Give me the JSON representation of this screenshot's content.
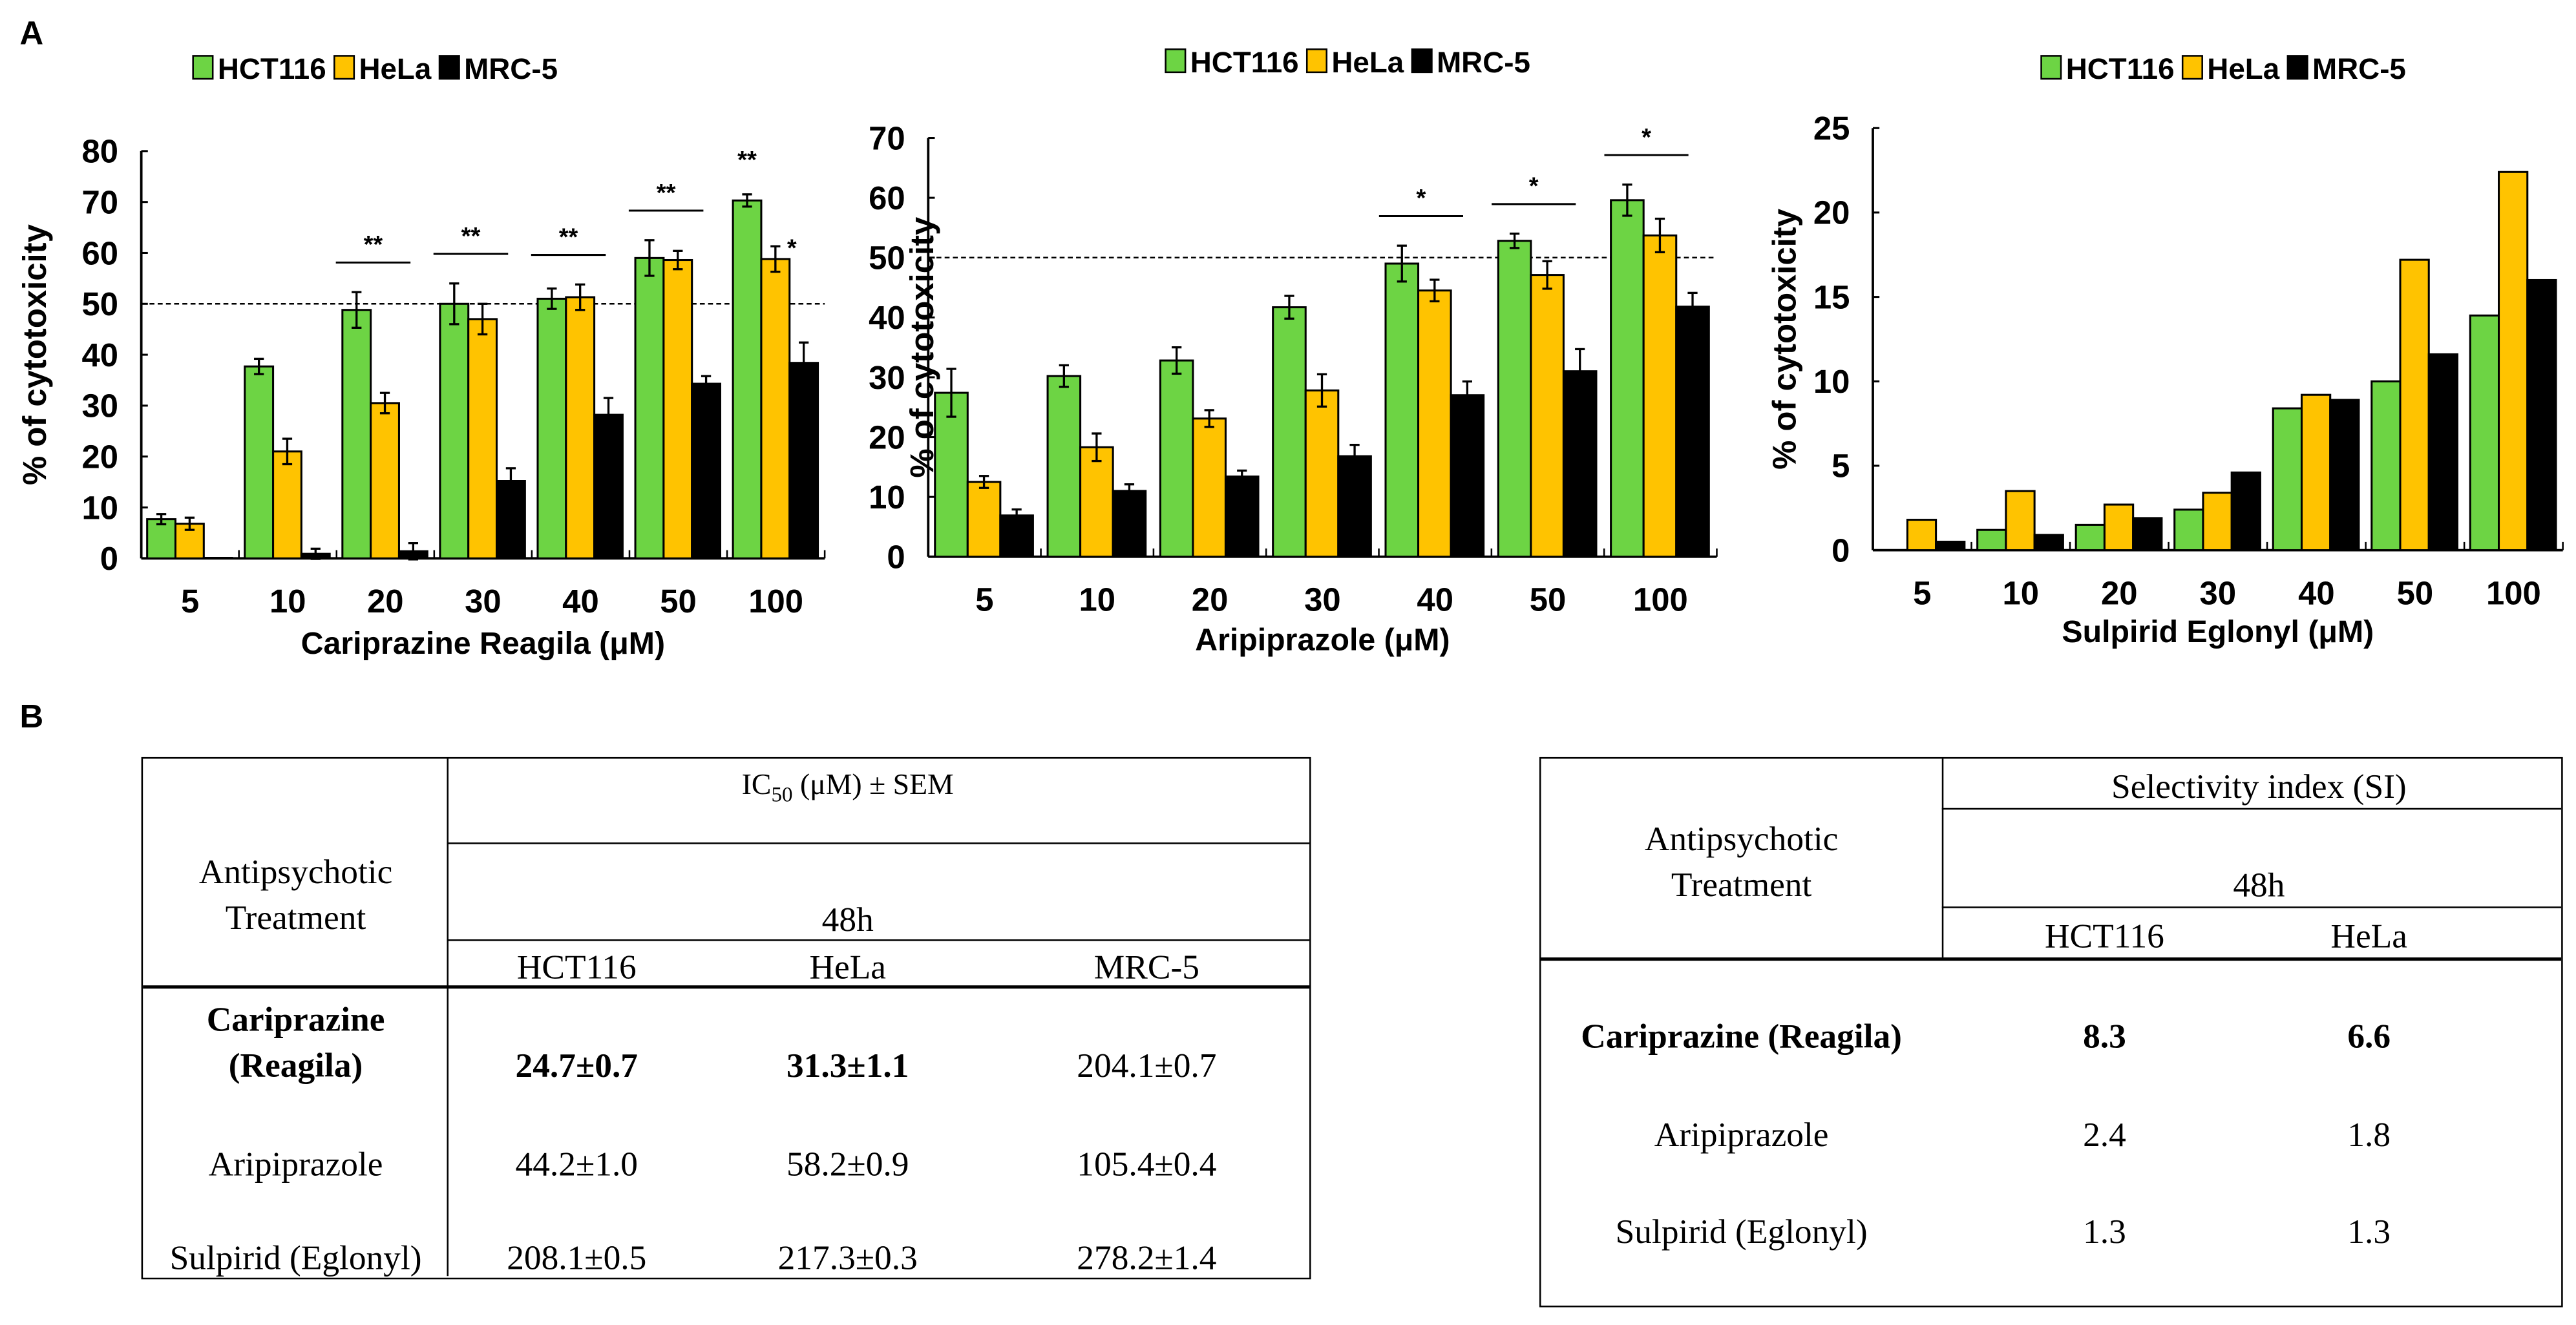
{
  "panel_labels": {
    "a": "A",
    "b": "B"
  },
  "colors": {
    "HCT116": "#6dd444",
    "HeLa": "#ffc300",
    "MRC-5": "#000000"
  },
  "chart_data": [
    {
      "type": "bar",
      "title": "",
      "legend": [
        "HCT116",
        "HeLa",
        "MRC-5"
      ],
      "legend_position": "top",
      "xlabel": "Cariprazine Reagila (μM)",
      "ylabel": "% of cytotoxicity",
      "categories": [
        "5",
        "10",
        "20",
        "30",
        "40",
        "50",
        "100"
      ],
      "ylim": [
        0,
        80
      ],
      "yticks": [
        0,
        10,
        20,
        30,
        40,
        50,
        60,
        70,
        80
      ],
      "reference_line": 50,
      "series": [
        {
          "name": "HCT116",
          "values": [
            7.7,
            37.7,
            48.8,
            50.0,
            51.0,
            59.0,
            70.3
          ],
          "errors": [
            1.0,
            1.5,
            3.5,
            4.0,
            2.0,
            3.5,
            1.2
          ]
        },
        {
          "name": "HeLa",
          "values": [
            6.8,
            21.0,
            30.5,
            47.0,
            51.3,
            58.6,
            58.8
          ],
          "errors": [
            1.2,
            2.5,
            2.0,
            3.0,
            2.5,
            1.8,
            2.5
          ]
        },
        {
          "name": "MRC-5",
          "values": [
            0.1,
            0.9,
            1.4,
            15.2,
            28.2,
            34.3,
            38.4
          ],
          "errors": [
            0,
            1.0,
            1.6,
            2.5,
            3.3,
            1.5,
            4.0
          ]
        }
      ],
      "significance": [
        {
          "category": "20",
          "label": "**",
          "bracket": true
        },
        {
          "category": "30",
          "label": "**",
          "bracket": true
        },
        {
          "category": "40",
          "label": "**",
          "bracket": true
        },
        {
          "category": "50",
          "label": "**",
          "bracket": true
        },
        {
          "category": "100",
          "label": "**",
          "series": "HCT116"
        },
        {
          "category": "100",
          "label": "*",
          "series": "HeLa"
        }
      ]
    },
    {
      "type": "bar",
      "title": "",
      "legend": [
        "HCT116",
        "HeLa",
        "MRC-5"
      ],
      "legend_position": "top",
      "xlabel": "Aripiprazole (μM)",
      "ylabel": "% of cytotoxicity",
      "categories": [
        "5",
        "10",
        "20",
        "30",
        "40",
        "50",
        "100"
      ],
      "ylim": [
        0,
        70
      ],
      "yticks": [
        0,
        10,
        20,
        30,
        40,
        50,
        60,
        70
      ],
      "reference_line": 50,
      "series": [
        {
          "name": "HCT116",
          "values": [
            27.4,
            30.2,
            32.8,
            41.7,
            49.0,
            52.8,
            59.6
          ],
          "errors": [
            4.0,
            1.8,
            2.2,
            1.9,
            3.0,
            1.2,
            2.6
          ]
        },
        {
          "name": "HeLa",
          "values": [
            12.5,
            18.3,
            23.1,
            27.8,
            44.5,
            47.1,
            53.7
          ],
          "errors": [
            1.0,
            2.3,
            1.4,
            2.7,
            1.8,
            2.3,
            2.8
          ]
        },
        {
          "name": "MRC-5",
          "values": [
            6.9,
            11.0,
            13.4,
            16.8,
            27.0,
            31.0,
            41.8
          ],
          "errors": [
            1.0,
            1.1,
            1.0,
            1.9,
            2.3,
            3.7,
            2.3
          ]
        }
      ],
      "significance": [
        {
          "category": "40",
          "label": "*",
          "bracket": true
        },
        {
          "category": "50",
          "label": "*",
          "bracket": true
        },
        {
          "category": "100",
          "label": "*",
          "bracket": true
        }
      ]
    },
    {
      "type": "bar",
      "title": "",
      "legend": [
        "HCT116",
        "HeLa",
        "MRC-5"
      ],
      "legend_position": "top",
      "xlabel": "Sulpirid Eglonyl (μM)",
      "ylabel": "% of cytotoxicity",
      "categories": [
        "5",
        "10",
        "20",
        "30",
        "40",
        "50",
        "100"
      ],
      "ylim": [
        0,
        25
      ],
      "yticks": [
        0,
        5,
        10,
        15,
        20,
        25
      ],
      "series": [
        {
          "name": "HCT116",
          "values": [
            0,
            1.2,
            1.5,
            2.4,
            8.4,
            10.0,
            13.9
          ]
        },
        {
          "name": "HeLa",
          "values": [
            1.8,
            3.5,
            2.7,
            3.4,
            9.2,
            17.2,
            22.4
          ]
        },
        {
          "name": "MRC-5",
          "values": [
            0.5,
            0.9,
            1.9,
            4.6,
            8.9,
            11.6,
            16.0
          ]
        }
      ],
      "significance": []
    }
  ],
  "ic50_table": {
    "header_col": [
      "Antipsychotic",
      "Treatment"
    ],
    "header_metric_main": "IC",
    "header_metric_sub": "50",
    "header_metric_rest": " (μM) ± SEM",
    "timepoint": "48h",
    "columns": [
      "HCT116",
      "HeLa",
      "MRC-5"
    ],
    "rows": [
      {
        "name": [
          "Cariprazine",
          "(Reagila)"
        ],
        "values": [
          "24.7±0.7",
          "31.3±1.1",
          "204.1±0.7"
        ]
      },
      {
        "name": [
          "Aripiprazole"
        ],
        "values": [
          "44.2±1.0",
          "58.2±0.9",
          "105.4±0.4"
        ]
      },
      {
        "name": [
          "Sulpirid (Eglonyl)"
        ],
        "values": [
          "208.1±0.5",
          "217.3±0.3",
          "278.2±1.4"
        ]
      }
    ]
  },
  "si_table": {
    "header_col": [
      "Antipsychotic",
      "Treatment"
    ],
    "header_metric": "Selectivity index (SI)",
    "timepoint": "48h",
    "columns": [
      "HCT116",
      "HeLa"
    ],
    "rows": [
      {
        "name": "Cariprazine (Reagila)",
        "values": [
          "8.3",
          "6.6"
        ]
      },
      {
        "name": "Aripiprazole",
        "values": [
          "2.4",
          "1.8"
        ]
      },
      {
        "name": "Sulpirid (Eglonyl)",
        "values": [
          "1.3",
          "1.3"
        ]
      }
    ]
  }
}
